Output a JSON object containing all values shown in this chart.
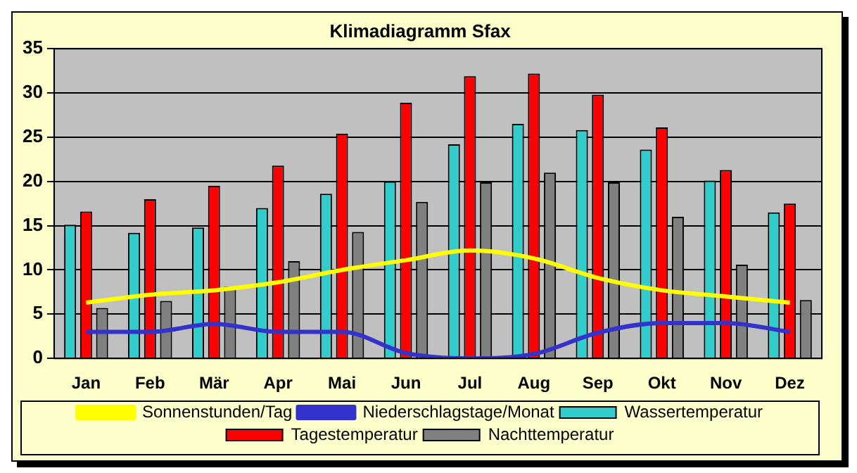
{
  "chart_data": {
    "type": "bar",
    "title": "Klimadiagramm Sfax",
    "categories": [
      "Jan",
      "Feb",
      "Mär",
      "Apr",
      "Mai",
      "Jun",
      "Jul",
      "Aug",
      "Sep",
      "Okt",
      "Nov",
      "Dez"
    ],
    "series": [
      {
        "name": "Wassertemperatur",
        "color": "#33cccc",
        "values": [
          15.1,
          14.2,
          14.8,
          17,
          18.6,
          20,
          24.2,
          26.5,
          25.8,
          23.6,
          20.1,
          16.5
        ]
      },
      {
        "name": "Tagestemperatur",
        "color": "#ff0000",
        "values": [
          16.6,
          18,
          19.5,
          21.8,
          25.4,
          28.9,
          31.9,
          32.2,
          29.8,
          26.1,
          21.3,
          17.5
        ]
      },
      {
        "name": "Nachttemperatur",
        "color": "#808080",
        "values": [
          5.7,
          6.5,
          8.1,
          11,
          14.3,
          17.7,
          19.9,
          21,
          19.9,
          16,
          10.6,
          6.6
        ]
      },
      {
        "name": "Sonnenstunden/Tag",
        "type": "line",
        "color": "#ffff00",
        "values": [
          6.3,
          7.2,
          7.7,
          8.6,
          10,
          11.1,
          12.2,
          11.3,
          9.1,
          7.7,
          7,
          6.3
        ]
      },
      {
        "name": "Niederschlagstage/Monat",
        "type": "line",
        "color": "#3333cc",
        "values": [
          3,
          3,
          3.9,
          3,
          3,
          0.6,
          0,
          0.5,
          2.9,
          4,
          4,
          3
        ]
      }
    ],
    "ylim": [
      0,
      35
    ],
    "yticks": [
      0,
      5,
      10,
      15,
      20,
      25,
      30,
      35
    ],
    "grid": "y",
    "legend": "bottom",
    "marker": "none"
  }
}
